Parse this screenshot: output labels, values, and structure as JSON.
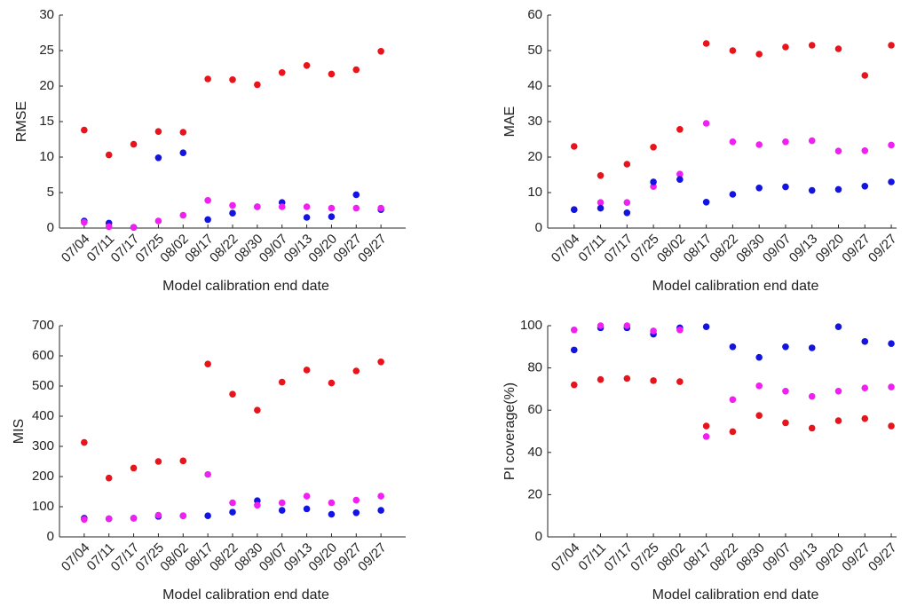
{
  "chart_data": [
    {
      "type": "scatter",
      "ylabel": "RMSE",
      "xlabel": "Model calibration end date",
      "categories": [
        "07/04",
        "07/11",
        "07/17",
        "07/25",
        "08/02",
        "08/17",
        "08/22",
        "08/30",
        "09/07",
        "09/13",
        "09/20",
        "09/27",
        "09/27"
      ],
      "ylim": [
        0,
        30
      ],
      "yticks": [
        0,
        5,
        10,
        15,
        20,
        25,
        30
      ],
      "series": [
        {
          "color": "#e8141c",
          "values": [
            13.8,
            10.3,
            11.8,
            13.6,
            13.5,
            21.0,
            20.9,
            20.2,
            21.9,
            22.9,
            21.7,
            22.3,
            24.9
          ]
        },
        {
          "color": "#1414e0",
          "values": [
            1.0,
            0.7,
            0.1,
            9.9,
            10.6,
            1.2,
            2.1,
            3.0,
            3.6,
            1.5,
            1.6,
            4.7,
            2.6
          ]
        },
        {
          "color": "#f020f0",
          "values": [
            0.8,
            0.2,
            0.1,
            1.0,
            1.8,
            3.9,
            3.2,
            3.0,
            3.0,
            3.0,
            2.8,
            2.8,
            2.8
          ]
        }
      ]
    },
    {
      "type": "scatter",
      "ylabel": "MAE",
      "xlabel": "Model calibration end date",
      "categories": [
        "07/04",
        "07/11",
        "07/17",
        "07/25",
        "08/02",
        "08/17",
        "08/22",
        "08/30",
        "09/07",
        "09/13",
        "09/20",
        "09/27",
        "09/27"
      ],
      "ylim": [
        0,
        60
      ],
      "yticks": [
        0,
        10,
        20,
        30,
        40,
        50,
        60
      ],
      "series": [
        {
          "color": "#e8141c",
          "values": [
            23,
            14.8,
            18,
            22.8,
            27.8,
            52,
            50,
            49,
            51,
            51.5,
            50.5,
            43,
            51.5
          ]
        },
        {
          "color": "#f020f0",
          "values": [
            5.2,
            7.2,
            7.2,
            11.7,
            15.2,
            29.5,
            24.3,
            23.5,
            24.3,
            24.6,
            21.7,
            21.8,
            23.4
          ]
        },
        {
          "color": "#1414e0",
          "values": [
            5.2,
            5.6,
            4.3,
            13,
            13.7,
            7.3,
            9.5,
            11.3,
            11.6,
            10.6,
            10.9,
            11.8,
            13.0
          ]
        }
      ]
    },
    {
      "type": "scatter",
      "ylabel": "MIS",
      "xlabel": "Model calibration end date",
      "categories": [
        "07/04",
        "07/11",
        "07/17",
        "07/25",
        "08/02",
        "08/17",
        "08/22",
        "08/30",
        "09/07",
        "09/13",
        "09/20",
        "09/27",
        "09/27"
      ],
      "ylim": [
        0,
        700
      ],
      "yticks": [
        0,
        100,
        200,
        300,
        400,
        500,
        600,
        700
      ],
      "series": [
        {
          "color": "#e8141c",
          "values": [
            313,
            195,
            228,
            250,
            252,
            573,
            473,
            420,
            513,
            553,
            510,
            550,
            580
          ]
        },
        {
          "color": "#1414e0",
          "values": [
            62,
            60,
            62,
            68,
            70,
            70,
            82,
            120,
            88,
            93,
            75,
            80,
            88
          ]
        },
        {
          "color": "#f020f0",
          "values": [
            58,
            60,
            62,
            72,
            70,
            207,
            113,
            105,
            113,
            135,
            113,
            122,
            135
          ]
        }
      ]
    },
    {
      "type": "scatter",
      "ylabel": "PI coverage(%)",
      "xlabel": "Model calibration end date",
      "categories": [
        "07/04",
        "07/11",
        "07/17",
        "07/25",
        "08/02",
        "08/17",
        "08/22",
        "08/30",
        "09/07",
        "09/13",
        "09/20",
        "09/27",
        "09/27"
      ],
      "ylim": [
        0,
        100
      ],
      "yticks": [
        0,
        20,
        40,
        60,
        80,
        100
      ],
      "series": [
        {
          "color": "#e8141c",
          "values": [
            72,
            74.5,
            75,
            74,
            73.5,
            52.5,
            49.8,
            57.5,
            54,
            51.5,
            55,
            56,
            52.5
          ]
        },
        {
          "color": "#1414e0",
          "values": [
            88.5,
            99,
            99,
            96,
            99,
            99.5,
            90,
            85,
            90,
            89.5,
            99.5,
            92.5,
            91.5
          ]
        },
        {
          "color": "#f020f0",
          "values": [
            98,
            100,
            100,
            97.5,
            98,
            47.5,
            65,
            71.5,
            69,
            66.5,
            69,
            70.5,
            71
          ]
        }
      ]
    }
  ]
}
